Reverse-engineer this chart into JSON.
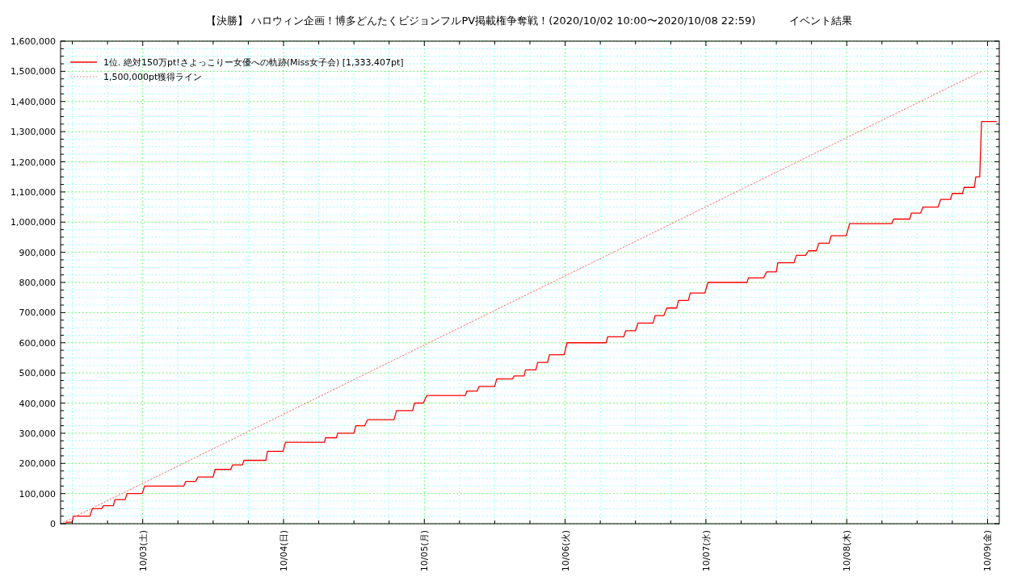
{
  "chart_data": {
    "type": "line",
    "title": "【決勝】 ハロウィン企画！博多どんたくビジョンフルPV掲載権争奪戦！(2020/10/02 10:00〜2020/10/08 22:59)          イベント結果",
    "xlim": [
      "2020-10-02T10:00",
      "2020-10-09T02:00"
    ],
    "xticks": [
      {
        "value": "2020-10-02T12:00",
        "label": null
      },
      {
        "value": "2020-10-02T18:00",
        "label": null
      },
      {
        "value": "2020-10-03T00:00",
        "label": "10/03(土)"
      },
      {
        "value": "2020-10-03T06:00",
        "label": null
      },
      {
        "value": "2020-10-03T12:00",
        "label": null
      },
      {
        "value": "2020-10-03T18:00",
        "label": null
      },
      {
        "value": "2020-10-04T00:00",
        "label": "10/04(日)"
      },
      {
        "value": "2020-10-04T06:00",
        "label": null
      },
      {
        "value": "2020-10-04T12:00",
        "label": null
      },
      {
        "value": "2020-10-04T18:00",
        "label": null
      },
      {
        "value": "2020-10-05T00:00",
        "label": "10/05(月)"
      },
      {
        "value": "2020-10-05T06:00",
        "label": null
      },
      {
        "value": "2020-10-05T12:00",
        "label": null
      },
      {
        "value": "2020-10-05T18:00",
        "label": null
      },
      {
        "value": "2020-10-06T00:00",
        "label": "10/06(火)"
      },
      {
        "value": "2020-10-06T06:00",
        "label": null
      },
      {
        "value": "2020-10-06T12:00",
        "label": null
      },
      {
        "value": "2020-10-06T18:00",
        "label": null
      },
      {
        "value": "2020-10-07T00:00",
        "label": "10/07(水)"
      },
      {
        "value": "2020-10-07T06:00",
        "label": null
      },
      {
        "value": "2020-10-07T12:00",
        "label": null
      },
      {
        "value": "2020-10-07T18:00",
        "label": null
      },
      {
        "value": "2020-10-08T00:00",
        "label": "10/08(木)"
      },
      {
        "value": "2020-10-08T06:00",
        "label": null
      },
      {
        "value": "2020-10-08T12:00",
        "label": null
      },
      {
        "value": "2020-10-08T18:00",
        "label": null
      },
      {
        "value": "2020-10-09T00:00",
        "label": "10/09(金)"
      }
    ],
    "ylim": [
      0,
      1600000
    ],
    "yticks": [
      0,
      {
        "value": 25000,
        "label": null
      },
      {
        "value": 50000,
        "label": null
      },
      {
        "value": 75000,
        "label": null
      },
      {
        "value": 100000,
        "label": "100,000"
      },
      {
        "value": 125000,
        "label": null
      },
      {
        "value": 150000,
        "label": null
      },
      {
        "value": 175000,
        "label": null
      },
      {
        "value": 200000,
        "label": "200,000"
      },
      {
        "value": 225000,
        "label": null
      },
      {
        "value": 250000,
        "label": null
      },
      {
        "value": 275000,
        "label": null
      },
      {
        "value": 300000,
        "label": "300,000"
      },
      {
        "value": 325000,
        "label": null
      },
      {
        "value": 350000,
        "label": null
      },
      {
        "value": 375000,
        "label": null
      },
      {
        "value": 400000,
        "label": "400,000"
      },
      {
        "value": 425000,
        "label": null
      },
      {
        "value": 450000,
        "label": null
      },
      {
        "value": 475000,
        "label": null
      },
      {
        "value": 500000,
        "label": "500,000"
      },
      {
        "value": 525000,
        "label": null
      },
      {
        "value": 550000,
        "label": null
      },
      {
        "value": 575000,
        "label": null
      },
      {
        "value": 600000,
        "label": "600,000"
      },
      {
        "value": 625000,
        "label": null
      },
      {
        "value": 650000,
        "label": null
      },
      {
        "value": 675000,
        "label": null
      },
      {
        "value": 700000,
        "label": "700,000"
      },
      {
        "value": 725000,
        "label": null
      },
      {
        "value": 750000,
        "label": null
      },
      {
        "value": 775000,
        "label": null
      },
      {
        "value": 800000,
        "label": "800,000"
      },
      {
        "value": 825000,
        "label": null
      },
      {
        "value": 850000,
        "label": null
      },
      {
        "value": 875000,
        "label": null
      },
      {
        "value": 900000,
        "label": "900,000"
      },
      {
        "value": 925000,
        "label": null
      },
      {
        "value": 950000,
        "label": null
      },
      {
        "value": 975000,
        "label": null
      },
      {
        "value": 1000000,
        "label": "1,000,000"
      },
      {
        "value": 1025000,
        "label": null
      },
      {
        "value": 1050000,
        "label": null
      },
      {
        "value": 1075000,
        "label": null
      },
      {
        "value": 1100000,
        "label": "1,100,000"
      },
      {
        "value": 1125000,
        "label": null
      },
      {
        "value": 1150000,
        "label": null
      },
      {
        "value": 1175000,
        "label": null
      },
      {
        "value": 1200000,
        "label": "1,200,000"
      },
      {
        "value": 1225000,
        "label": null
      },
      {
        "value": 1250000,
        "label": null
      },
      {
        "value": 1275000,
        "label": null
      },
      {
        "value": 1300000,
        "label": "1,300,000"
      },
      {
        "value": 1325000,
        "label": null
      },
      {
        "value": 1350000,
        "label": null
      },
      {
        "value": 1375000,
        "label": null
      },
      {
        "value": 1400000,
        "label": "1,400,000"
      },
      {
        "value": 1425000,
        "label": null
      },
      {
        "value": 1450000,
        "label": null
      },
      {
        "value": 1475000,
        "label": null
      },
      {
        "value": 1500000,
        "label": "1,500,000"
      },
      {
        "value": 1525000,
        "label": null
      },
      {
        "value": 1550000,
        "label": null
      },
      {
        "value": 1575000,
        "label": null
      },
      {
        "value": 1600000,
        "label": "1,600,000"
      }
    ],
    "grid": true,
    "legend": "top left",
    "series": [
      {
        "name": "1位. 絶対150万pt!さよっこりー女優への軌跡(Miss女子会) [1,333,407pt]",
        "color": "#ff0000",
        "line_style": "solid",
        "x": [
          "2020-10-02T10:50",
          "2020-10-02T11:00",
          "2020-10-02T12:00",
          "2020-10-02T12:10",
          "2020-10-02T15:00",
          "2020-10-02T15:25",
          "2020-10-02T17:00",
          "2020-10-02T17:20",
          "2020-10-02T19:00",
          "2020-10-02T19:15",
          "2020-10-02T21:00",
          "2020-10-02T21:20",
          "2020-10-02T23:55",
          "2020-10-03T00:20",
          "2020-10-03T07:00",
          "2020-10-03T07:20",
          "2020-10-03T09:00",
          "2020-10-03T09:25",
          "2020-10-03T12:00",
          "2020-10-03T12:20",
          "2020-10-03T15:00",
          "2020-10-03T15:20",
          "2020-10-03T17:00",
          "2020-10-03T17:15",
          "2020-10-03T21:00",
          "2020-10-03T21:15",
          "2020-10-03T23:55",
          "2020-10-04T00:20",
          "2020-10-04T07:00",
          "2020-10-04T07:10",
          "2020-10-04T09:00",
          "2020-10-04T09:15",
          "2020-10-04T12:00",
          "2020-10-04T12:20",
          "2020-10-04T13:50",
          "2020-10-04T14:20",
          "2020-10-04T18:50",
          "2020-10-04T19:15",
          "2020-10-04T22:00",
          "2020-10-04T22:20",
          "2020-10-04T23:50",
          "2020-10-05T00:25",
          "2020-10-05T07:00",
          "2020-10-05T07:15",
          "2020-10-05T09:00",
          "2020-10-05T09:20",
          "2020-10-05T12:00",
          "2020-10-05T12:20",
          "2020-10-05T15:00",
          "2020-10-05T15:20",
          "2020-10-05T17:00",
          "2020-10-05T17:15",
          "2020-10-05T19:00",
          "2020-10-05T19:20",
          "2020-10-05T21:00",
          "2020-10-05T21:20",
          "2020-10-05T23:50",
          "2020-10-06T00:20",
          "2020-10-06T07:00",
          "2020-10-06T07:15",
          "2020-10-06T10:00",
          "2020-10-06T10:20",
          "2020-10-06T12:00",
          "2020-10-06T12:25",
          "2020-10-06T15:00",
          "2020-10-06T15:20",
          "2020-10-06T16:50",
          "2020-10-06T17:20",
          "2020-10-06T19:00",
          "2020-10-06T19:20",
          "2020-10-06T21:00",
          "2020-10-06T21:20",
          "2020-10-06T23:50",
          "2020-10-07T00:20",
          "2020-10-07T07:00",
          "2020-10-07T07:15",
          "2020-10-07T09:50",
          "2020-10-07T10:20",
          "2020-10-07T12:00",
          "2020-10-07T12:15",
          "2020-10-07T15:00",
          "2020-10-07T15:25",
          "2020-10-07T17:00",
          "2020-10-07T17:30",
          "2020-10-07T18:50",
          "2020-10-07T19:15",
          "2020-10-07T21:00",
          "2020-10-07T21:20",
          "2020-10-07T23:55",
          "2020-10-08T00:30",
          "2020-10-08T07:40",
          "2020-10-08T08:00",
          "2020-10-08T10:45",
          "2020-10-08T11:00",
          "2020-10-08T12:35",
          "2020-10-08T13:00",
          "2020-10-08T15:35",
          "2020-10-08T16:00",
          "2020-10-08T17:40",
          "2020-10-08T18:00",
          "2020-10-08T19:45",
          "2020-10-08T20:00",
          "2020-10-08T21:45",
          "2020-10-08T22:00",
          "2020-10-08T22:40",
          "2020-10-08T22:59",
          "2020-10-09T01:30"
        ],
        "values": [
          0,
          5000,
          5000,
          25000,
          25000,
          50000,
          50000,
          60000,
          60000,
          80000,
          80000,
          100000,
          100000,
          125000,
          125000,
          140000,
          140000,
          155000,
          155000,
          180000,
          180000,
          195000,
          195000,
          210000,
          210000,
          240000,
          240000,
          270000,
          270000,
          285000,
          285000,
          300000,
          300000,
          325000,
          325000,
          345000,
          345000,
          375000,
          375000,
          400000,
          400000,
          425000,
          425000,
          440000,
          440000,
          455000,
          455000,
          480000,
          480000,
          490000,
          490000,
          510000,
          510000,
          535000,
          535000,
          560000,
          560000,
          600000,
          600000,
          620000,
          620000,
          640000,
          640000,
          665000,
          665000,
          690000,
          690000,
          715000,
          715000,
          740000,
          740000,
          765000,
          765000,
          800000,
          800000,
          815000,
          815000,
          835000,
          835000,
          865000,
          865000,
          890000,
          890000,
          905000,
          905000,
          930000,
          930000,
          955000,
          955000,
          995000,
          995000,
          1010000,
          1010000,
          1030000,
          1030000,
          1050000,
          1050000,
          1075000,
          1075000,
          1095000,
          1095000,
          1115000,
          1115000,
          1150000,
          1150000,
          1333407,
          1333407
        ]
      },
      {
        "name": "1,500,000pt獲得ライン",
        "color": "#ff6666",
        "line_style": "dotted",
        "x": [
          "2020-10-02T10:00",
          "2020-10-08T23:00"
        ],
        "values": [
          0,
          1500000
        ]
      }
    ]
  }
}
